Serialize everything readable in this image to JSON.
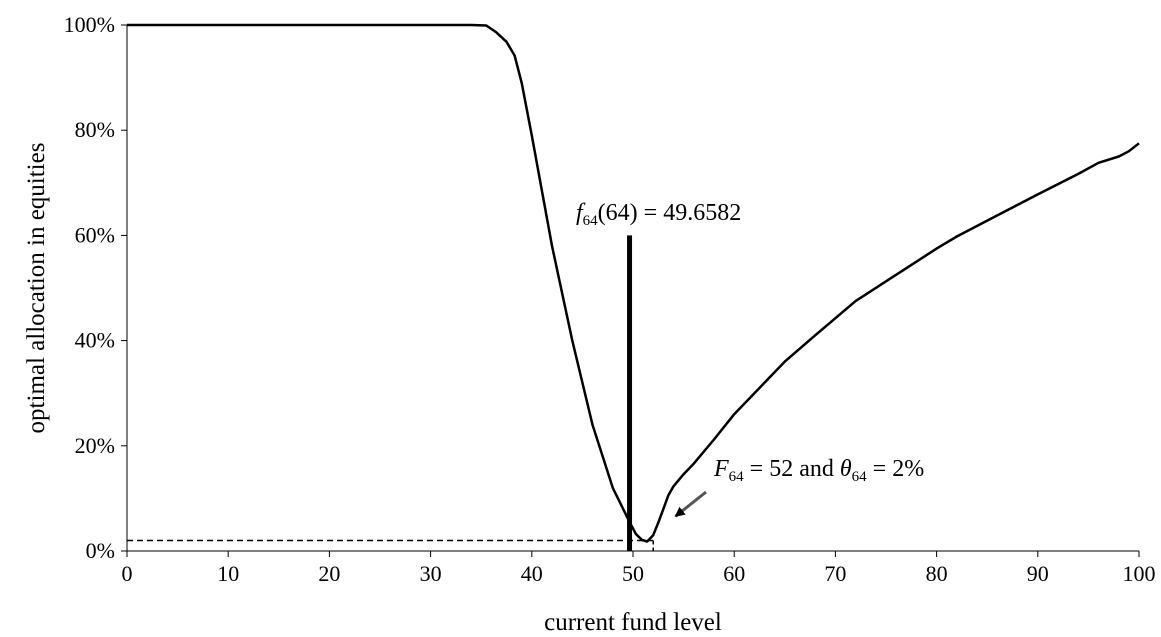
{
  "chart_data": {
    "type": "line",
    "title": "",
    "xlabel": "current fund level",
    "ylabel": "optimal allocation in equities",
    "xlim": [
      0,
      100
    ],
    "ylim": [
      0,
      100
    ],
    "grid": false,
    "x_ticks": [
      0,
      10,
      20,
      30,
      40,
      50,
      60,
      70,
      80,
      90,
      100
    ],
    "y_ticks": [
      0,
      20,
      40,
      60,
      80,
      100
    ],
    "y_tick_labels": [
      "0%",
      "20%",
      "40%",
      "60%",
      "80%",
      "100%"
    ],
    "series": [
      {
        "name": "",
        "x": [
          0,
          10,
          20,
          30,
          34,
          35.5,
          36.5,
          37.5,
          38.3,
          39,
          40,
          42,
          44,
          46,
          48,
          49.66,
          50.3,
          50.9,
          51.4,
          52,
          52.5,
          53,
          53.5,
          54,
          55,
          56,
          58,
          60,
          62,
          65,
          68,
          72,
          76,
          80,
          82,
          86,
          90,
          94,
          96,
          98,
          99,
          100
        ],
        "y": [
          100,
          100,
          100,
          100,
          100,
          99.9,
          98.6,
          96.8,
          94.2,
          89,
          79,
          58,
          40,
          24,
          12,
          5.5,
          3.2,
          2.1,
          1.8,
          3,
          5.4,
          8,
          10.6,
          12.3,
          14.6,
          16.6,
          21.2,
          26,
          30,
          36,
          41,
          47.5,
          52.5,
          57.5,
          59.8,
          63.8,
          67.8,
          71.7,
          73.8,
          75,
          76,
          77.5
        ]
      }
    ],
    "annotations": [
      {
        "label_main": "f",
        "label_sub": "64",
        "label_rest": "(64) = 49.6582",
        "marker": "vertical-line",
        "x": 49.6582,
        "y_top": 60
      },
      {
        "label_main_1": "F",
        "label_sub_1": "64",
        "label_mid": " = 52 and ",
        "label_main_2": "θ",
        "label_sub_2": "64",
        "label_rest": " = 2%",
        "marker": "arrow",
        "point_x": 54.2,
        "point_y": 6.6,
        "dashed_x": 52,
        "dashed_y": 2
      }
    ]
  }
}
